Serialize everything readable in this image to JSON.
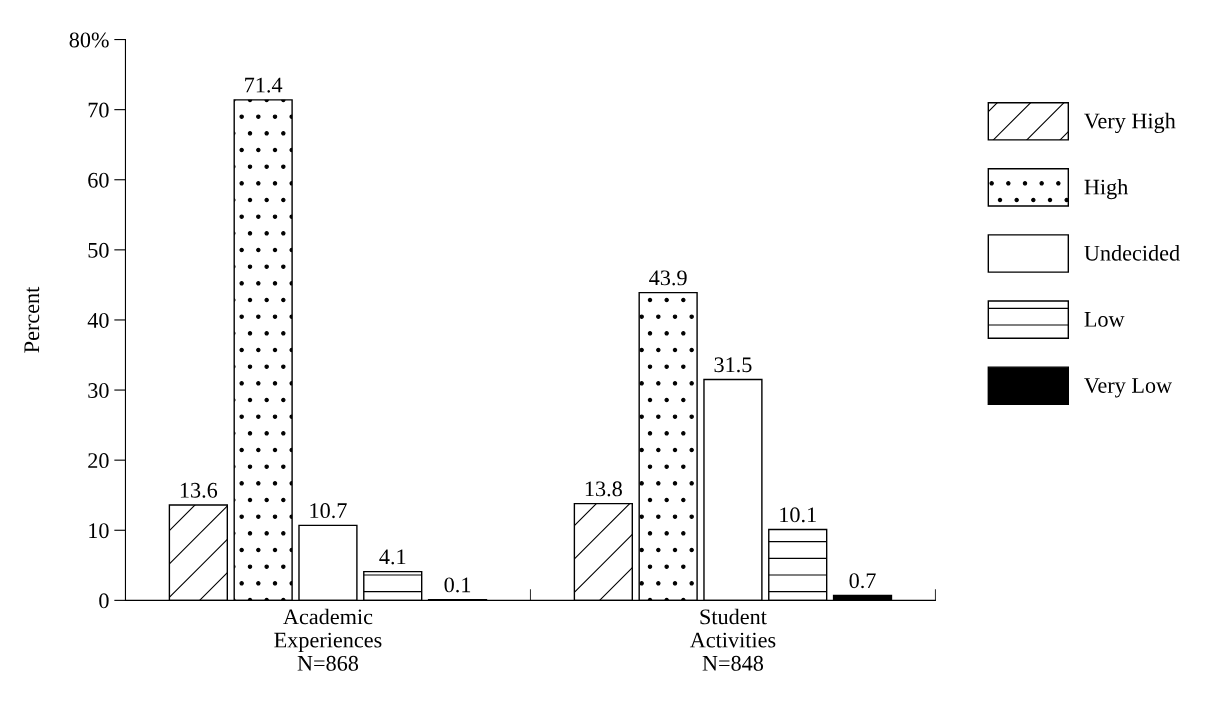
{
  "chart_data": {
    "type": "bar",
    "ylabel": "Percent",
    "categories": [
      "Academic\nExperiences\nN=868",
      "Student\nActivities\nN=848"
    ],
    "series": [
      {
        "name": "Very High",
        "color": "#ffffff",
        "values": [
          13.6,
          13.8
        ]
      },
      {
        "name": "High",
        "color": "#ffffff",
        "values": [
          71.4,
          43.9
        ]
      },
      {
        "name": "Undecided",
        "color": "#ffffff",
        "values": [
          10.7,
          31.5
        ]
      },
      {
        "name": "Low",
        "color": "#ffffff",
        "values": [
          4.1,
          10.1
        ]
      },
      {
        "name": "Very Low",
        "color": "#000000",
        "values": [
          0.1,
          0.7
        ]
      }
    ],
    "ylim": [
      0,
      80
    ],
    "yticks": [
      0,
      10,
      20,
      30,
      40,
      50,
      60,
      70,
      {
        "value": 80,
        "label": "80%"
      }
    ],
    "data_labels": true,
    "legend": "right",
    "grid": false
  }
}
